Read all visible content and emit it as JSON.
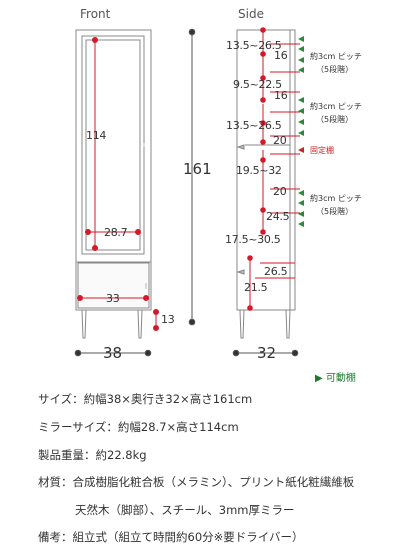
{
  "views": {
    "front": "Front",
    "side": "Side"
  },
  "colors": {
    "line": "#888888",
    "dim_dot": "#d41a2a",
    "dim_line": "#d41a2a",
    "arrow_green": "#2a8a3a",
    "fixed_red": "#cc2222",
    "text": "#333333"
  },
  "front_dims": {
    "mirror_h": "114",
    "mirror_w": "28.7",
    "drawer_w": "33",
    "leg_h": "13",
    "total_h": "161",
    "width": "38"
  },
  "side_dims": {
    "top": "13.5~26.5",
    "sh1": "16",
    "g1": "9.5~22.5",
    "sh2": "16",
    "g2": "13.5~26.5",
    "sh3": "20",
    "g3": "19.5~32",
    "sh4": "20",
    "sh5": "24.5",
    "g4": "17.5~30.5",
    "sh6": "26.5",
    "bottom": "21.5",
    "depth": "32"
  },
  "notes": {
    "pitch1_a": "約3cm ピッチ",
    "pitch1_b": "（5段階）",
    "pitch2_a": "約3cm ピッチ",
    "pitch2_b": "（5段階）",
    "fixed": "固定棚",
    "pitch3_a": "約3cm ピッチ",
    "pitch3_b": "（5段階）"
  },
  "legend": {
    "arrow": "▶",
    "movable": "可動棚"
  },
  "specs": {
    "size": "サイズ：約幅38×奥行き32×高さ161cm",
    "mirror": "ミラーサイズ：約幅28.7×高さ114cm",
    "weight": "製品重量：約22.8kg",
    "material1": "材質：合成樹脂化粧合板（メラミン）、プリント紙化粧繊維板",
    "material2": "天然木（脚部）、スチール、3mm厚ミラー",
    "note": "備考：組立式（組立て時間約60分※要ドライバー）"
  }
}
